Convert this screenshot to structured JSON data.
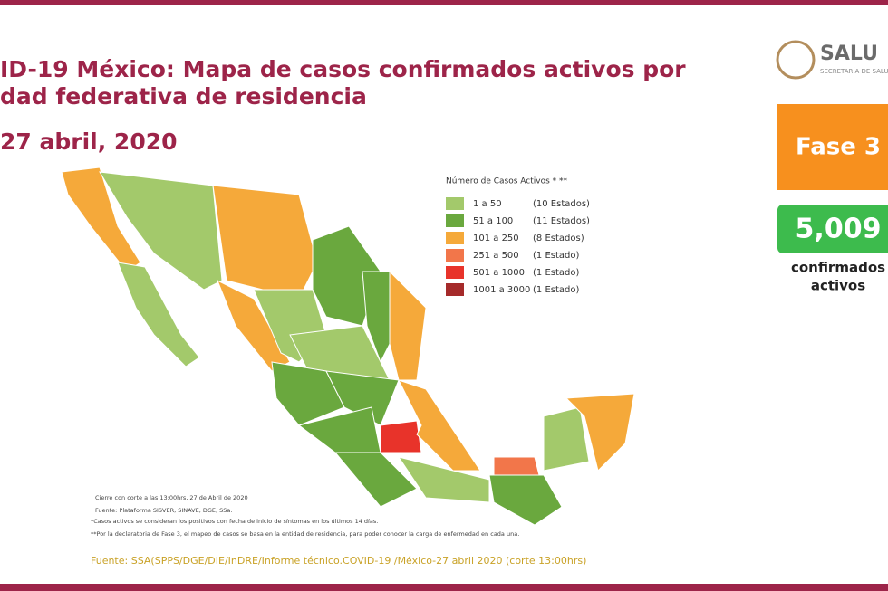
{
  "header": {
    "title_line1": "ID-19 México: Mapa de casos confirmados activos por",
    "title_line2": "dad federativa de residencia",
    "date": "27 abril, 2020"
  },
  "logo": {
    "name": "SALU",
    "subtitle": "SECRETARÍA DE SALU"
  },
  "phase": "Fase 3",
  "total": {
    "value": "5,009",
    "label_line1": "confirmados",
    "label_line2": "activos"
  },
  "legend": {
    "title": "Número de Casos Activos * **",
    "items": [
      {
        "range": "1 a 50",
        "count": "(10 Estados)",
        "color": "#a3c96b"
      },
      {
        "range": "51 a 100",
        "count": "(11 Estados)",
        "color": "#6aa83e"
      },
      {
        "range": "101 a 250",
        "count": "(8 Estados)",
        "color": "#f5a93a"
      },
      {
        "range": "251 a 500",
        "count": "(1 Estado)",
        "color": "#f2764a"
      },
      {
        "range": "501 a 1000",
        "count": "(1 Estado)",
        "color": "#e8332a"
      },
      {
        "range": "1001 a 3000",
        "count": "(1 Estado)",
        "color": "#a52a2a"
      }
    ]
  },
  "notes": [
    "Cierre con corte a las 13:00hrs, 27 de Abril de 2020",
    "Fuente: Plataforma SISVER, SINAVE, DGE, SSa.",
    "*Casos activos se consideran los positivos con fecha de inicio de síntomas en los últimos 14 días.",
    "**Por la declaratoria de Fase 3, el mapeo de casos se basa en la entidad de residencia, para poder conocer la carga de enfermedad en cada una."
  ],
  "footer": "Fuente: SSA(SPPS/DGE/DIE/InDRE/Informe técnico.COVID-19 /México-27 abril 2020 (corte 13:00hrs)"
}
